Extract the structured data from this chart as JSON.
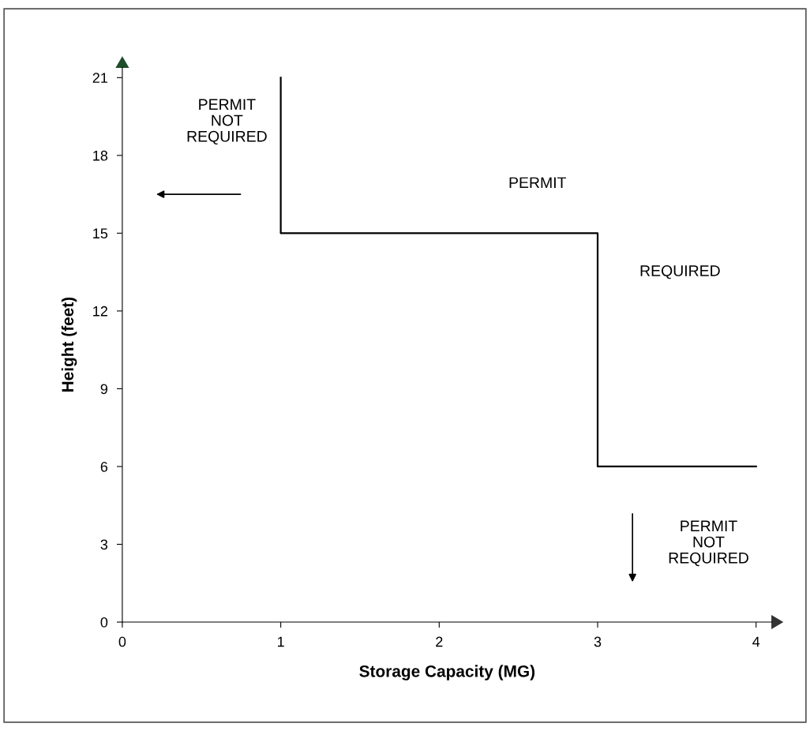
{
  "chart_data": {
    "type": "line",
    "xlabel": "Storage Capacity (MG)",
    "ylabel": "Height (feet)",
    "x": [
      1,
      1,
      3,
      3,
      4
    ],
    "values": [
      21,
      15,
      15,
      6,
      6
    ],
    "color": "#000000",
    "xlim": [
      0,
      4.1
    ],
    "ylim": [
      0,
      21.4
    ],
    "xticks": [
      0,
      1,
      2,
      3,
      4
    ],
    "yticks": [
      0,
      3,
      6,
      9,
      12,
      15,
      18,
      21
    ],
    "annotations": [
      "PERMIT\nNOT\nREQUIRED",
      "PERMIT",
      "REQUIRED",
      "PERMIT\nNOT\nREQUIRED"
    ]
  }
}
